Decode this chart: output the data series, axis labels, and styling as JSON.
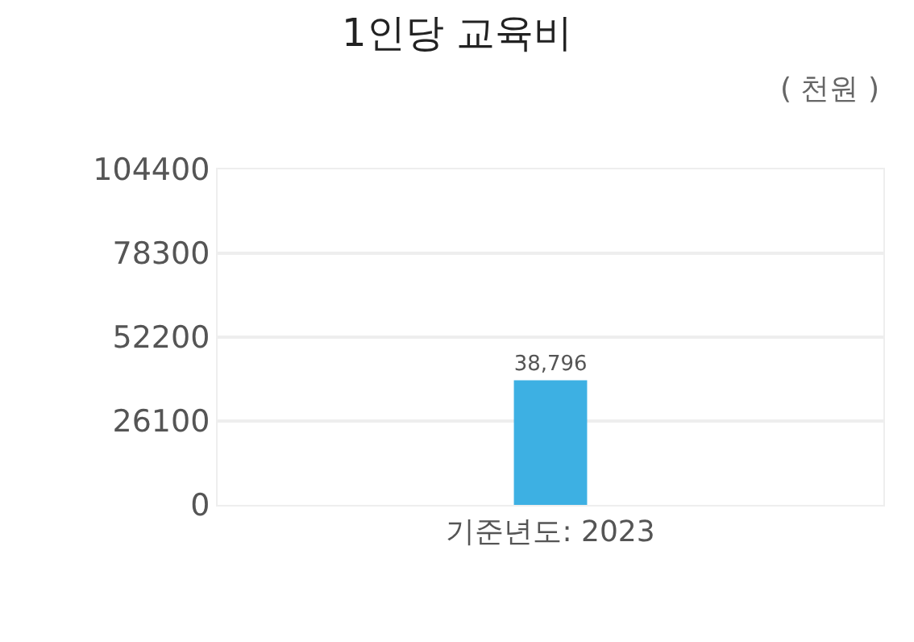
{
  "chart_data": {
    "type": "bar",
    "title": "1인당 교육비",
    "subtitle": "( 천원 )",
    "categories": [
      "기준년도: 2023"
    ],
    "values": [
      38796
    ],
    "color": "#3db0e3",
    "value_labels": [
      "38,796"
    ],
    "ylim": [
      0,
      104400
    ],
    "yticks": [
      0,
      26100,
      52200,
      78300,
      104400
    ],
    "grid": "y"
  }
}
